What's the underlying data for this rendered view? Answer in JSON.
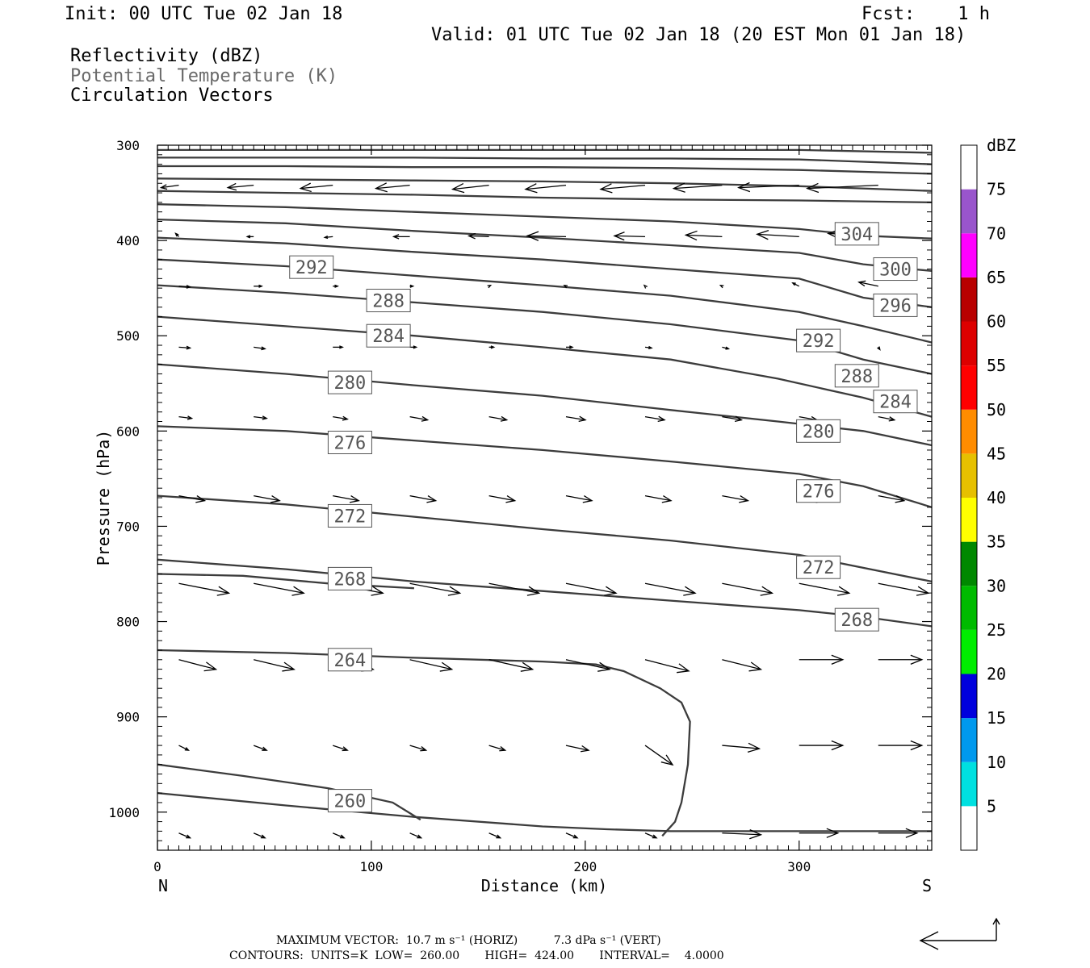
{
  "header": {
    "init": "Init: 00 UTC Tue 02 Jan 18",
    "fcst": "Fcst:    1 h",
    "valid": "Valid: 01 UTC Tue 02 Jan 18 (20 EST Mon 01 Jan 18)",
    "fields": [
      "Reflectivity (dBZ)",
      "Potential Temperature (K)",
      "Circulation Vectors"
    ]
  },
  "chart_data": {
    "type": "cross-section",
    "xlabel": "Distance (km)",
    "ylabel": "Pressure (hPa)",
    "xlim": [
      0,
      362
    ],
    "ylim": [
      300,
      1040
    ],
    "x_ticks": [
      "0",
      "100",
      "200",
      "300"
    ],
    "y_ticks": [
      "300",
      "400",
      "500",
      "600",
      "700",
      "800",
      "900",
      "1000"
    ],
    "x_end_labels": {
      "left": "N",
      "right": "S"
    },
    "contours": [
      {
        "level": 260,
        "points": [
          [
            0,
            980
          ],
          [
            60,
            993
          ],
          [
            120,
            1005
          ],
          [
            180,
            1015
          ],
          [
            210,
            1018
          ],
          [
            240,
            1020
          ],
          [
            300,
            1020
          ],
          [
            362,
            1020
          ]
        ]
      },
      {
        "level": 260,
        "points": [
          [
            0,
            950
          ],
          [
            40,
            962
          ],
          [
            80,
            975
          ],
          [
            110,
            990
          ],
          [
            123,
            1008
          ]
        ]
      },
      {
        "level": 264,
        "points": [
          [
            0,
            830
          ],
          [
            60,
            833
          ],
          [
            120,
            838
          ],
          [
            180,
            842
          ],
          [
            205,
            845
          ],
          [
            218,
            852
          ],
          [
            235,
            870
          ],
          [
            245,
            885
          ],
          [
            249,
            905
          ],
          [
            248,
            950
          ],
          [
            245,
            990
          ],
          [
            242,
            1010
          ],
          [
            236,
            1025
          ]
        ]
      },
      {
        "level": 268,
        "points": [
          [
            0,
            735
          ],
          [
            60,
            745
          ],
          [
            120,
            758
          ],
          [
            180,
            768
          ],
          [
            240,
            778
          ],
          [
            300,
            788
          ],
          [
            330,
            795
          ],
          [
            362,
            805
          ]
        ]
      },
      {
        "level": 268,
        "points": [
          [
            0,
            750
          ],
          [
            40,
            752
          ],
          [
            80,
            760
          ],
          [
            120,
            765
          ]
        ]
      },
      {
        "level": 272,
        "points": [
          [
            0,
            668
          ],
          [
            60,
            677
          ],
          [
            120,
            690
          ],
          [
            180,
            703
          ],
          [
            240,
            715
          ],
          [
            300,
            730
          ],
          [
            362,
            758
          ]
        ]
      },
      {
        "level": 276,
        "points": [
          [
            0,
            595
          ],
          [
            60,
            600
          ],
          [
            120,
            610
          ],
          [
            180,
            620
          ],
          [
            240,
            632
          ],
          [
            300,
            645
          ],
          [
            330,
            658
          ],
          [
            362,
            680
          ]
        ]
      },
      {
        "level": 280,
        "points": [
          [
            0,
            530
          ],
          [
            60,
            540
          ],
          [
            120,
            552
          ],
          [
            180,
            563
          ],
          [
            240,
            578
          ],
          [
            290,
            590
          ],
          [
            330,
            600
          ],
          [
            362,
            615
          ]
        ]
      },
      {
        "level": 284,
        "points": [
          [
            0,
            480
          ],
          [
            60,
            490
          ],
          [
            120,
            500
          ],
          [
            180,
            512
          ],
          [
            240,
            525
          ],
          [
            290,
            545
          ],
          [
            330,
            565
          ],
          [
            362,
            585
          ]
        ]
      },
      {
        "level": 288,
        "points": [
          [
            0,
            447
          ],
          [
            60,
            455
          ],
          [
            120,
            465
          ],
          [
            180,
            475
          ],
          [
            240,
            488
          ],
          [
            300,
            505
          ],
          [
            330,
            525
          ],
          [
            362,
            540
          ]
        ]
      },
      {
        "level": 292,
        "points": [
          [
            0,
            420
          ],
          [
            60,
            427
          ],
          [
            120,
            437
          ],
          [
            180,
            447
          ],
          [
            240,
            458
          ],
          [
            300,
            475
          ],
          [
            330,
            490
          ],
          [
            362,
            507
          ]
        ]
      },
      {
        "level": 296,
        "points": [
          [
            0,
            397
          ],
          [
            60,
            403
          ],
          [
            120,
            412
          ],
          [
            180,
            420
          ],
          [
            240,
            430
          ],
          [
            300,
            440
          ],
          [
            330,
            460
          ],
          [
            362,
            470
          ]
        ]
      },
      {
        "level": 300,
        "points": [
          [
            0,
            378
          ],
          [
            60,
            382
          ],
          [
            120,
            390
          ],
          [
            180,
            397
          ],
          [
            240,
            405
          ],
          [
            300,
            413
          ],
          [
            330,
            425
          ],
          [
            362,
            432
          ]
        ]
      },
      {
        "level": 304,
        "points": [
          [
            0,
            362
          ],
          [
            60,
            365
          ],
          [
            120,
            370
          ],
          [
            180,
            375
          ],
          [
            240,
            380
          ],
          [
            300,
            388
          ],
          [
            330,
            395
          ],
          [
            362,
            398
          ]
        ]
      },
      {
        "level": 308,
        "points": [
          [
            0,
            348
          ],
          [
            60,
            350
          ],
          [
            120,
            352
          ],
          [
            180,
            355
          ],
          [
            240,
            357
          ],
          [
            300,
            358
          ],
          [
            362,
            360
          ]
        ]
      },
      {
        "level": 312,
        "points": [
          [
            0,
            335
          ],
          [
            60,
            336
          ],
          [
            120,
            337
          ],
          [
            180,
            338
          ],
          [
            240,
            340
          ],
          [
            300,
            343
          ],
          [
            362,
            348
          ]
        ]
      },
      {
        "level": 316,
        "points": [
          [
            0,
            322
          ],
          [
            60,
            322
          ],
          [
            120,
            323
          ],
          [
            180,
            323
          ],
          [
            240,
            324
          ],
          [
            300,
            326
          ],
          [
            362,
            330
          ]
        ]
      },
      {
        "level": 320,
        "points": [
          [
            0,
            313
          ],
          [
            60,
            313
          ],
          [
            120,
            313
          ],
          [
            180,
            314
          ],
          [
            240,
            314
          ],
          [
            300,
            315
          ],
          [
            362,
            320
          ]
        ]
      },
      {
        "level": 324,
        "points": [
          [
            0,
            305
          ],
          [
            60,
            305
          ],
          [
            120,
            305
          ],
          [
            180,
            305
          ],
          [
            240,
            305
          ],
          [
            300,
            305
          ],
          [
            362,
            308
          ]
        ]
      }
    ],
    "contour_labels": [
      {
        "text": "304",
        "x": 327,
        "y": 393
      },
      {
        "text": "300",
        "x": 345,
        "y": 430
      },
      {
        "text": "292",
        "x": 72,
        "y": 428
      },
      {
        "text": "288",
        "x": 108,
        "y": 463
      },
      {
        "text": "296",
        "x": 345,
        "y": 468
      },
      {
        "text": "284",
        "x": 108,
        "y": 500
      },
      {
        "text": "292",
        "x": 309,
        "y": 505
      },
      {
        "text": "288",
        "x": 327,
        "y": 542
      },
      {
        "text": "280",
        "x": 90,
        "y": 549
      },
      {
        "text": "284",
        "x": 345,
        "y": 569
      },
      {
        "text": "280",
        "x": 309,
        "y": 600
      },
      {
        "text": "276",
        "x": 90,
        "y": 612
      },
      {
        "text": "276",
        "x": 309,
        "y": 663
      },
      {
        "text": "272",
        "x": 90,
        "y": 689
      },
      {
        "text": "272",
        "x": 309,
        "y": 743
      },
      {
        "text": "268",
        "x": 90,
        "y": 755
      },
      {
        "text": "268",
        "x": 327,
        "y": 798
      },
      {
        "text": "264",
        "x": 90,
        "y": 840
      },
      {
        "text": "260",
        "x": 90,
        "y": 988
      }
    ],
    "vectors": [
      {
        "p": 342,
        "u": [
          -8,
          -15,
          -22,
          -30,
          -38,
          -43,
          -48,
          -53,
          -58,
          -63
        ],
        "s": [
          3,
          3,
          4,
          5,
          6,
          6,
          5,
          5,
          3,
          3
        ]
      },
      {
        "p": 396,
        "u": [
          -2,
          -2,
          -4,
          -10,
          -12,
          -26,
          -37,
          -47,
          -52,
          -60
        ],
        "s": [
          -4,
          0,
          0,
          -1,
          -2,
          0,
          -1,
          -2,
          -3,
          -4
        ]
      },
      {
        "p": 445,
        "u": [
          10,
          5,
          3,
          0,
          -3,
          -3,
          -1,
          -2,
          -8,
          -25
        ],
        "s": [
          1,
          0,
          0,
          0,
          -2,
          -2,
          -1,
          -2,
          -4,
          -5
        ]
      },
      {
        "p": 515,
        "u": [
          13,
          12,
          10,
          6,
          5,
          8,
          8,
          9,
          6,
          2
        ],
        "s": [
          1,
          2,
          0,
          0,
          0,
          0,
          1,
          2,
          2,
          3
        ]
      },
      {
        "p": 590,
        "u": [
          15,
          12,
          15,
          20,
          21,
          23,
          24,
          23,
          22,
          20
        ],
        "s": [
          2,
          2,
          3,
          4,
          4,
          4,
          3,
          4,
          3,
          4
        ]
      },
      {
        "p": 680,
        "u": [
          25,
          25,
          25,
          25,
          25,
          25,
          25,
          25,
          25,
          25
        ],
        "s": [
          5,
          5,
          5,
          5,
          5,
          5,
          5,
          5,
          5,
          5
        ]
      },
      {
        "p": 765,
        "u": [
          50,
          50,
          50,
          50,
          50,
          50,
          50,
          50,
          50,
          50
        ],
        "s": [
          10,
          10,
          10,
          10,
          10,
          10,
          10,
          10,
          10,
          10
        ]
      },
      {
        "p": 852,
        "u": [
          38,
          38,
          38,
          38,
          38,
          38,
          38,
          38,
          38,
          38
        ],
        "s": [
          10,
          10,
          10,
          10,
          10,
          10,
          10,
          10,
          10,
          12
        ]
      },
      {
        "p": 925,
        "u": [
          18,
          16,
          16,
          16,
          16,
          16,
          16,
          16,
          16,
          16
        ],
        "s": [
          6,
          6,
          6,
          6,
          6,
          6,
          6,
          6,
          6,
          6
        ]
      },
      {
        "p": 1020,
        "u": [
          14,
          14,
          14,
          14,
          14,
          14,
          14,
          14,
          14,
          14
        ],
        "s": [
          6,
          6,
          6,
          6,
          6,
          6,
          6,
          6,
          6,
          6
        ]
      }
    ],
    "vector_rows": [
      {
        "p": 342,
        "u": [
          -22,
          -32,
          -40,
          -42,
          -45,
          -50,
          -55,
          -60,
          -75,
          -88
        ],
        "v": [
          3,
          3,
          4,
          4,
          5,
          5,
          5,
          4,
          3,
          4
        ]
      },
      {
        "p": 396,
        "u": [
          -4,
          -8,
          -10,
          -20,
          -25,
          -48,
          -38,
          -45,
          -52,
          -62
        ],
        "v": [
          -4,
          0,
          1,
          0,
          -1,
          -1,
          -1,
          -2,
          -3,
          -4
        ]
      },
      {
        "p": 448,
        "u": [
          14,
          10,
          6,
          4,
          2,
          -2,
          -1,
          -2,
          -8,
          -24
        ],
        "v": [
          1,
          0,
          0,
          0,
          -1,
          -1,
          -1,
          -1,
          -4,
          -5
        ]
      },
      {
        "p": 512,
        "u": [
          14,
          14,
          12,
          8,
          6,
          8,
          8,
          8,
          6,
          2
        ],
        "v": [
          1,
          2,
          0,
          0,
          0,
          0,
          1,
          2,
          2,
          3
        ]
      },
      {
        "p": 585,
        "u": [
          16,
          16,
          18,
          22,
          22,
          24,
          24,
          24,
          22,
          20
        ],
        "v": [
          2,
          2,
          3,
          4,
          4,
          4,
          4,
          4,
          4,
          4
        ]
      },
      {
        "p": 668,
        "u": [
          32,
          32,
          32,
          32,
          32,
          32,
          32,
          32,
          32,
          32
        ],
        "v": [
          6,
          6,
          6,
          6,
          6,
          6,
          6,
          6,
          6,
          6
        ]
      },
      {
        "p": 760,
        "u": [
          62,
          62,
          62,
          62,
          62,
          62,
          62,
          62,
          62,
          62
        ],
        "v": [
          12,
          12,
          12,
          12,
          12,
          12,
          12,
          12,
          12,
          12
        ]
      },
      {
        "p": 840,
        "u": [
          46,
          50,
          50,
          52,
          54,
          54,
          54,
          48,
          54,
          54
        ],
        "v": [
          12,
          12,
          12,
          12,
          12,
          12,
          14,
          12,
          0,
          0
        ]
      },
      {
        "p": 930,
        "u": [
          12,
          16,
          18,
          20,
          20,
          28,
          34,
          46,
          54,
          54
        ],
        "v": [
          6,
          6,
          6,
          6,
          6,
          6,
          24,
          4,
          0,
          0
        ]
      },
      {
        "p": 1022,
        "u": [
          14,
          14,
          14,
          14,
          14,
          14,
          14,
          48,
          48,
          48
        ],
        "v": [
          6,
          6,
          6,
          6,
          6,
          6,
          6,
          2,
          0,
          0
        ]
      }
    ],
    "vector_x": [
      10,
      45,
      82,
      118,
      155,
      191,
      228,
      264,
      300,
      337
    ],
    "colorbar": {
      "label": "dBZ",
      "levels": [
        "5",
        "10",
        "15",
        "20",
        "25",
        "30",
        "35",
        "40",
        "45",
        "50",
        "55",
        "60",
        "65",
        "70",
        "75"
      ],
      "colors": [
        "#ffffff",
        "#00e0e0",
        "#0099ee",
        "#0000dd",
        "#00ee00",
        "#00bb00",
        "#008800",
        "#ffff00",
        "#e6c000",
        "#ff8c00",
        "#ff0000",
        "#dd0000",
        "#b80000",
        "#ff00ff",
        "#9955cc",
        "#ffffff"
      ]
    },
    "reference_vector": true
  },
  "footer": {
    "line1": "MAXIMUM VECTOR:  10.7 m s⁻¹ (HORIZ)          7.3 dPa s⁻¹ (VERT)",
    "line2": "CONTOURS:  UNITS=K  LOW=  260.00       HIGH=  424.00       INTERVAL=    4.0000"
  }
}
